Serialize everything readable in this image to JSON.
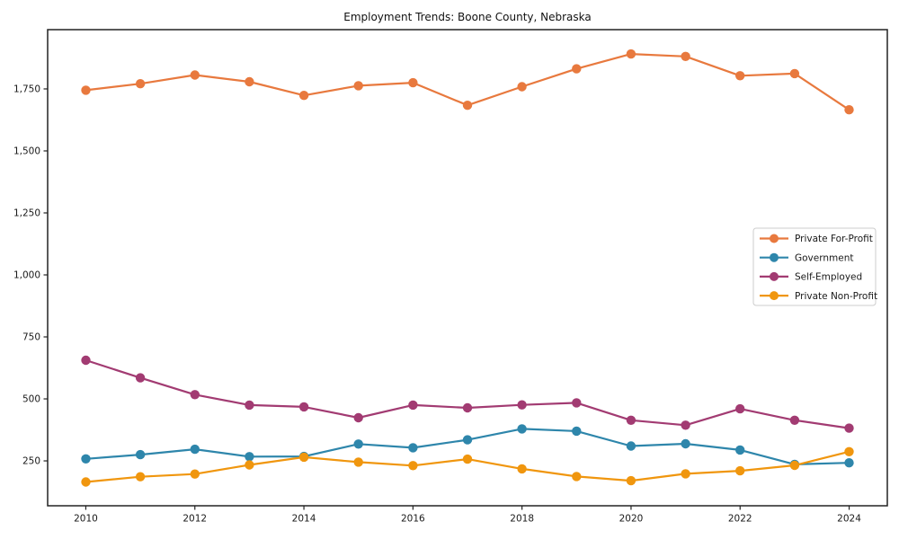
{
  "chart_data": {
    "type": "line",
    "title": "Employment Trends: Boone County, Nebraska",
    "xlabel": "",
    "ylabel": "",
    "grid": false,
    "legend_position": "center right",
    "xlim": [
      2009.3,
      2024.7
    ],
    "ylim": [
      69,
      1989
    ],
    "x": [
      2010,
      2011,
      2012,
      2013,
      2014,
      2015,
      2016,
      2017,
      2018,
      2019,
      2020,
      2021,
      2022,
      2023,
      2024
    ],
    "x_ticks": [
      2010,
      2012,
      2014,
      2016,
      2018,
      2020,
      2022,
      2024
    ],
    "x_tick_labels": [
      "2010",
      "2012",
      "2014",
      "2016",
      "2018",
      "2020",
      "2022",
      "2024"
    ],
    "y_ticks": [
      250,
      500,
      750,
      1000,
      1250,
      1500,
      1750
    ],
    "y_tick_labels": [
      "250",
      "500",
      "750",
      "1,000",
      "1,250",
      "1,500",
      "1,750"
    ],
    "series": [
      {
        "name": "Private For-Profit",
        "color": "#E8793E",
        "values": [
          1745,
          1771,
          1806,
          1779,
          1724,
          1763,
          1775,
          1684,
          1759,
          1831,
          1891,
          1881,
          1803,
          1812,
          1666
        ]
      },
      {
        "name": "Government",
        "color": "#2E86AB",
        "values": [
          258,
          275,
          297,
          267,
          268,
          318,
          303,
          335,
          379,
          370,
          310,
          319,
          294,
          236,
          242
        ]
      },
      {
        "name": "Self-Employed",
        "color": "#A23B72",
        "values": [
          656,
          585,
          517,
          475,
          468,
          424,
          475,
          464,
          476,
          484,
          414,
          394,
          460,
          414,
          382
        ]
      },
      {
        "name": "Private Non-Profit",
        "color": "#F0960E",
        "values": [
          165,
          186,
          197,
          234,
          265,
          245,
          231,
          257,
          218,
          187,
          170,
          198,
          210,
          232,
          287
        ]
      }
    ],
    "frame_color": "#222222",
    "tick_label_color": "#191919",
    "title_color": "#111111",
    "legend_border_color": "#cccccc",
    "legend_bg_color": "#ffffff"
  }
}
